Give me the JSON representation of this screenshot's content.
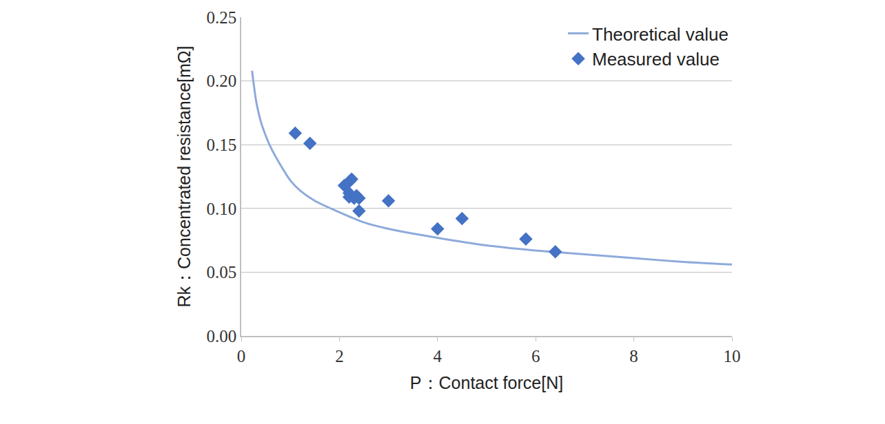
{
  "chart_data": {
    "type": "scatter",
    "x_label": "P：Contact force[N]",
    "y_label": "Rk：Concentrated resistance[mΩ]",
    "xlim": [
      0,
      10
    ],
    "xticks": [
      0,
      2,
      4,
      6,
      8,
      10
    ],
    "ylim": [
      0,
      0.25
    ],
    "yticks": [
      {
        "value": 0,
        "label": "0.00"
      },
      0.05,
      {
        "value": 0.1,
        "label": "0.10"
      },
      0.15,
      {
        "value": 0.2,
        "label": "0.20"
      },
      0.25
    ],
    "grid": true,
    "legend": "upper right",
    "series": [
      {
        "name": "Theoretical value",
        "type": "line",
        "color": "#8eaadb",
        "line_style": "solid",
        "x": [
          0.22,
          0.3,
          0.4,
          0.5,
          0.6,
          0.8,
          1.0,
          1.2,
          1.5,
          2,
          2.5,
          3,
          4,
          5,
          6,
          7,
          8,
          9,
          10
        ],
        "values": [
          0.208,
          0.185,
          0.168,
          0.157,
          0.148,
          0.134,
          0.122,
          0.114,
          0.106,
          0.097,
          0.089,
          0.084,
          0.077,
          0.071,
          0.067,
          0.064,
          0.061,
          0.058,
          0.056
        ]
      },
      {
        "name": "Measured value",
        "type": "scatter",
        "color": "#4472c4",
        "marker": "diamond",
        "x": [
          1.1,
          1.4,
          2.1,
          2.2,
          2.25,
          2.2,
          2.2,
          2.3,
          2.35,
          2.4,
          2.4,
          3.0,
          4.0,
          4.5,
          5.8,
          6.4
        ],
        "values": [
          0.159,
          0.151,
          0.118,
          0.121,
          0.123,
          0.112,
          0.109,
          0.108,
          0.11,
          0.108,
          0.098,
          0.106,
          0.084,
          0.092,
          0.076,
          0.066
        ]
      }
    ]
  }
}
